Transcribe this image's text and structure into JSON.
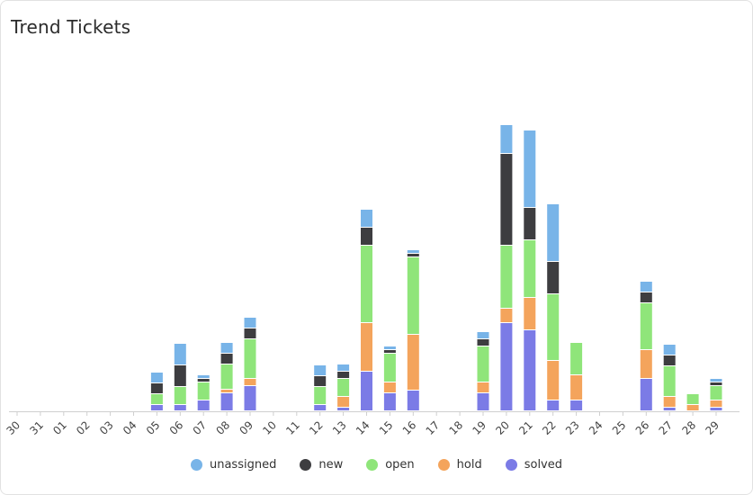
{
  "header": {
    "title": "Trend Tickets"
  },
  "chart_data": {
    "type": "bar",
    "stacked": true,
    "categories": [
      "30",
      "31",
      "01",
      "02",
      "03",
      "04",
      "05",
      "06",
      "07",
      "08",
      "09",
      "10",
      "11",
      "12",
      "13",
      "14",
      "15",
      "16",
      "17",
      "18",
      "19",
      "20",
      "21",
      "22",
      "23",
      "24",
      "25",
      "26",
      "27",
      "28",
      "29"
    ],
    "series": [
      {
        "name": "solved",
        "color": "#7b7be6",
        "values": [
          0,
          0,
          0,
          0,
          0,
          0,
          0.7,
          0.7,
          1.2,
          2.0,
          2.8,
          0,
          0,
          0.7,
          0.4,
          4.4,
          2.0,
          2.3,
          0,
          0,
          2.0,
          9.8,
          9.0,
          1.2,
          1.2,
          0,
          0,
          3.6,
          0.4,
          0,
          0.4
        ]
      },
      {
        "name": "hold",
        "color": "#f4a45c",
        "values": [
          0,
          0,
          0,
          0,
          0,
          0,
          0,
          0,
          0,
          0.4,
          0.8,
          0,
          0,
          0,
          1.2,
          5.4,
          1.2,
          6.2,
          0,
          0,
          1.2,
          1.6,
          3.6,
          4.4,
          2.8,
          0,
          0,
          3.2,
          1.2,
          0.7,
          0.8
        ]
      },
      {
        "name": "open",
        "color": "#8fe57a",
        "values": [
          0,
          0,
          0,
          0,
          0,
          0,
          1.2,
          2.0,
          2.0,
          2.8,
          4.4,
          0,
          0,
          2.0,
          2.0,
          8.6,
          3.2,
          8.6,
          0,
          0,
          4.0,
          7.0,
          6.4,
          7.4,
          3.6,
          0,
          0,
          5.2,
          3.4,
          1.2,
          1.6
        ]
      },
      {
        "name": "new",
        "color": "#3d3d40",
        "values": [
          0,
          0,
          0,
          0,
          0,
          0,
          1.2,
          2.4,
          0.4,
          1.2,
          1.2,
          0,
          0,
          1.2,
          0.8,
          2.0,
          0.4,
          0.4,
          0,
          0,
          0.8,
          10.2,
          3.6,
          3.6,
          0,
          0,
          0,
          1.2,
          1.2,
          0,
          0.4
        ]
      },
      {
        "name": "unassigned",
        "color": "#78b4e8",
        "values": [
          0,
          0,
          0,
          0,
          0,
          0,
          1.2,
          2.4,
          0.4,
          1.2,
          1.2,
          0,
          0,
          1.2,
          0.8,
          2.0,
          0.4,
          0.4,
          0,
          0,
          0.8,
          3.2,
          8.6,
          6.4,
          0,
          0,
          0,
          1.2,
          1.2,
          0,
          0.4
        ]
      }
    ],
    "ylim": [
      0,
      32.5
    ],
    "grid": false,
    "legend_position": "bottom"
  }
}
